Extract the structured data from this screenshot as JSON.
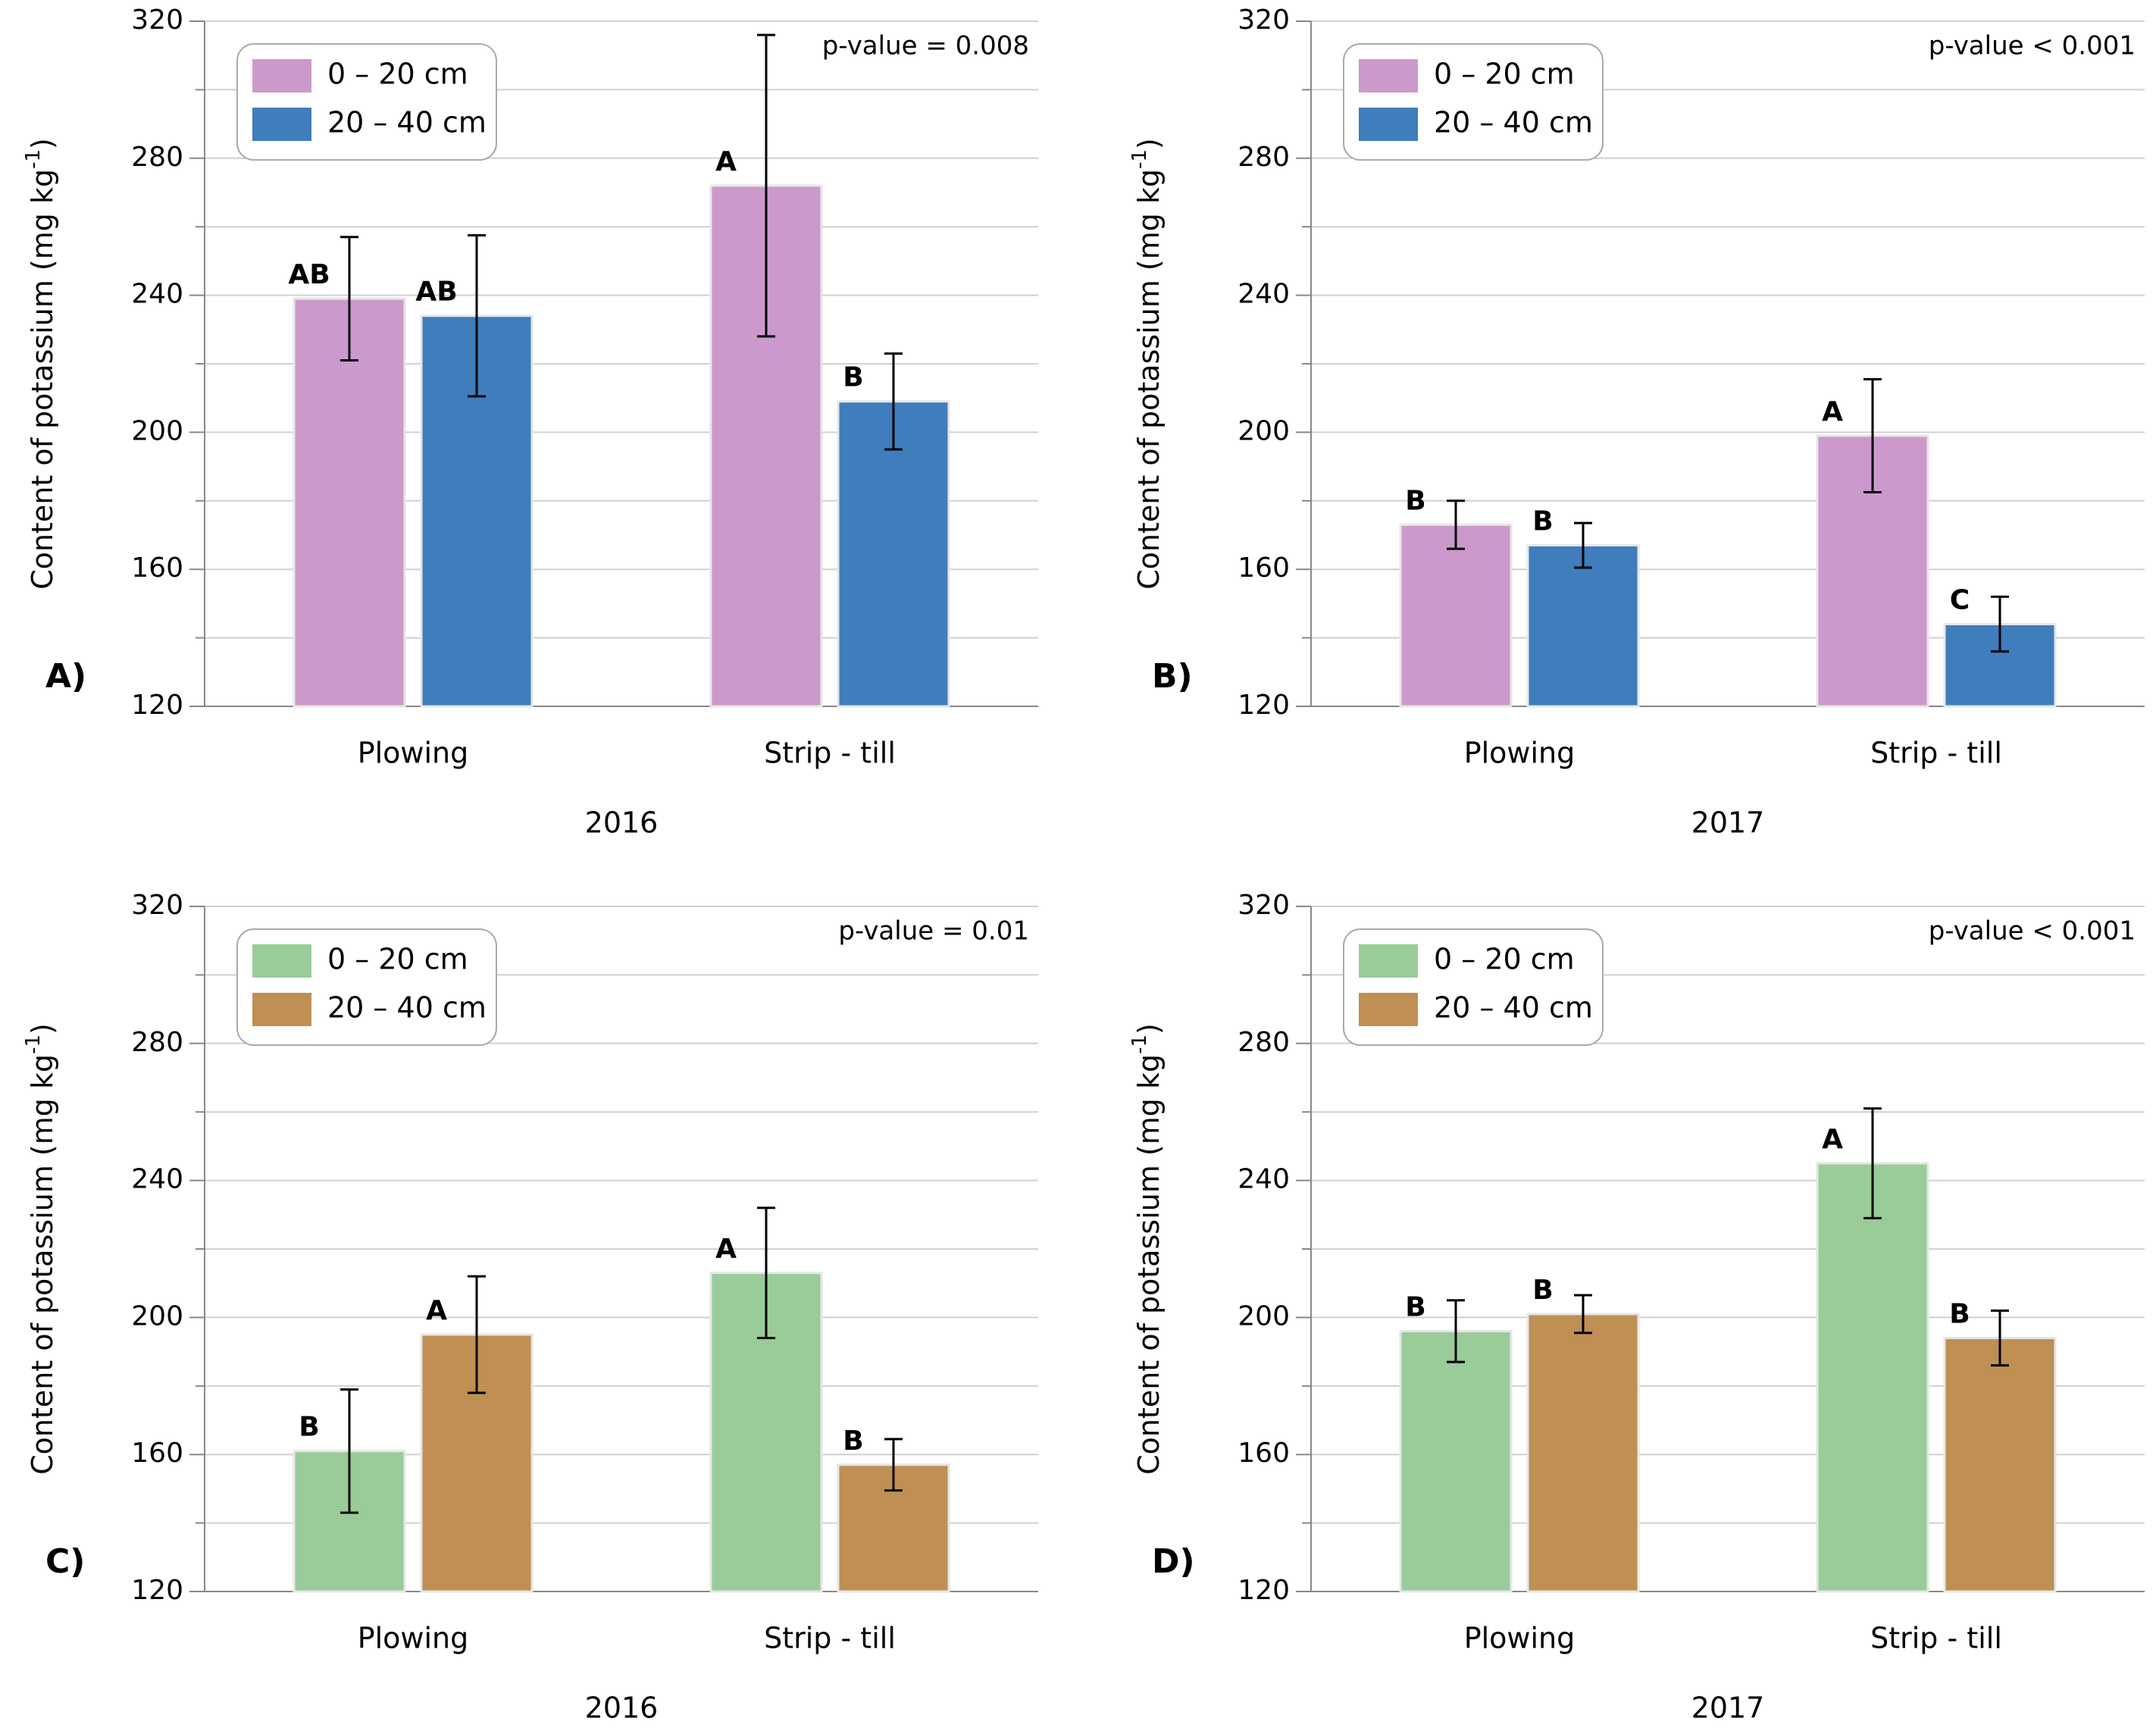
{
  "chart_data": [
    {
      "type": "bar",
      "panel_label": "A)",
      "xlabel": "2016",
      "ylabel": "Content of potassium (mg kg",
      "ylabel_sup": "-1",
      "ylabel_end": ")",
      "annotation": "p-value = 0.008",
      "categories": [
        "Plowing",
        "Strip - till"
      ],
      "series": [
        {
          "name": "0 – 20 cm",
          "color": "#cc99cc",
          "values": [
            239,
            272
          ],
          "errors": [
            18,
            44
          ],
          "letters": [
            "AB",
            "A"
          ]
        },
        {
          "name": "20 – 40 cm",
          "color": "#3f7dbd",
          "values": [
            234,
            209
          ],
          "errors": [
            23.5,
            14
          ],
          "letters": [
            "AB",
            "B"
          ]
        }
      ],
      "ylim": [
        120,
        320
      ],
      "yticks": [
        120,
        160,
        200,
        240,
        280,
        320
      ],
      "minor_yticks": [
        140,
        180,
        220,
        260,
        300
      ],
      "grid": true,
      "legend": "upper left"
    },
    {
      "type": "bar",
      "panel_label": "B)",
      "xlabel": "2017",
      "ylabel": "Content of potassium (mg kg",
      "ylabel_sup": "-1",
      "ylabel_end": ")",
      "annotation": "p-value < 0.001",
      "categories": [
        "Plowing",
        "Strip - till"
      ],
      "series": [
        {
          "name": "0 – 20 cm",
          "color": "#cc99cc",
          "values": [
            173,
            199
          ],
          "errors": [
            7,
            16.5
          ],
          "letters": [
            "B",
            "A"
          ]
        },
        {
          "name": "20 – 40 cm",
          "color": "#3f7dbd",
          "values": [
            167,
            144
          ],
          "errors": [
            6.5,
            8
          ],
          "letters": [
            "B",
            "C"
          ]
        }
      ],
      "ylim": [
        120,
        320
      ],
      "yticks": [
        120,
        160,
        200,
        240,
        280,
        320
      ],
      "minor_yticks": [
        140,
        180,
        220,
        260,
        300
      ],
      "grid": true,
      "legend": "upper left"
    },
    {
      "type": "bar",
      "panel_label": "C)",
      "xlabel": "2016",
      "ylabel": "Content of potassium (mg kg",
      "ylabel_sup": "-1",
      "ylabel_end": ")",
      "annotation": "p-value = 0.01",
      "categories": [
        "Plowing",
        "Strip - till"
      ],
      "series": [
        {
          "name": "0 – 20 cm",
          "color": "#99cc99",
          "values": [
            161,
            213
          ],
          "errors": [
            18,
            19
          ],
          "letters": [
            "B",
            "A"
          ]
        },
        {
          "name": "20 – 40 cm",
          "color": "#bf8f54",
          "values": [
            195,
            157
          ],
          "errors": [
            17,
            7.5
          ],
          "letters": [
            "A",
            "B"
          ]
        }
      ],
      "ylim": [
        120,
        320
      ],
      "yticks": [
        120,
        160,
        200,
        240,
        280,
        320
      ],
      "minor_yticks": [
        140,
        180,
        220,
        260,
        300
      ],
      "grid": true,
      "legend": "upper left"
    },
    {
      "type": "bar",
      "panel_label": "D)",
      "xlabel": "2017",
      "ylabel": "Content of potassium (mg kg",
      "ylabel_sup": "-1",
      "ylabel_end": ")",
      "annotation": "p-value < 0.001",
      "categories": [
        "Plowing",
        "Strip - till"
      ],
      "series": [
        {
          "name": "0 – 20 cm",
          "color": "#99cc99",
          "values": [
            196,
            245
          ],
          "errors": [
            9,
            16
          ],
          "letters": [
            "B",
            "A"
          ]
        },
        {
          "name": "20 – 40 cm",
          "color": "#bf8f54",
          "values": [
            201,
            194
          ],
          "errors": [
            5.5,
            8
          ],
          "letters": [
            "B",
            "B"
          ]
        }
      ],
      "ylim": [
        120,
        320
      ],
      "yticks": [
        120,
        160,
        200,
        240,
        280,
        320
      ],
      "minor_yticks": [
        140,
        180,
        220,
        260,
        300
      ],
      "grid": true,
      "legend": "upper left"
    }
  ]
}
